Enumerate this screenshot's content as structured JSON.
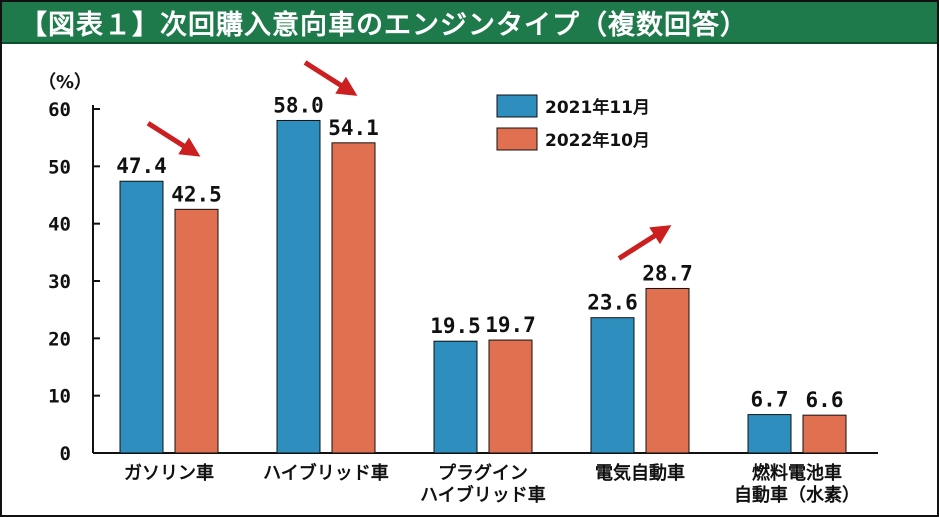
{
  "header": {
    "title": "【図表１】次回購入意向車のエンジンタイプ（複数回答）",
    "background": "#1f7a4b"
  },
  "chart_data": {
    "type": "bar",
    "unit_label": "（%）",
    "ylim": [
      0,
      60
    ],
    "yticks": [
      "0",
      "10",
      "20",
      "30",
      "40",
      "50",
      "60"
    ],
    "categories": [
      [
        "ガソリン車"
      ],
      [
        "ハイブリッド車"
      ],
      [
        "プラグイン",
        "ハイブリッド車"
      ],
      [
        "電気自動車"
      ],
      [
        "燃料電池車",
        "自動車（水素）"
      ]
    ],
    "series": [
      {
        "name": "2021年11月",
        "color": "#2e8fbf",
        "values": [
          47.4,
          58.0,
          19.5,
          23.6,
          6.7
        ],
        "labels": [
          "47.4",
          "58.0",
          "19.5",
          "23.6",
          "6.7"
        ]
      },
      {
        "name": "2022年10月",
        "color": "#e07050",
        "values": [
          42.5,
          54.1,
          19.7,
          28.7,
          6.6
        ],
        "labels": [
          "42.5",
          "54.1",
          "19.7",
          "28.7",
          "6.6"
        ]
      }
    ],
    "annotations": [
      {
        "category": "ガソリン車",
        "arrow": "down"
      },
      {
        "category": "ハイブリッド車",
        "arrow": "down"
      },
      {
        "category": "電気自動車",
        "arrow": "up"
      }
    ],
    "arrow_color": "#cc1f1f",
    "grid": false,
    "legend_position": "top-center"
  }
}
